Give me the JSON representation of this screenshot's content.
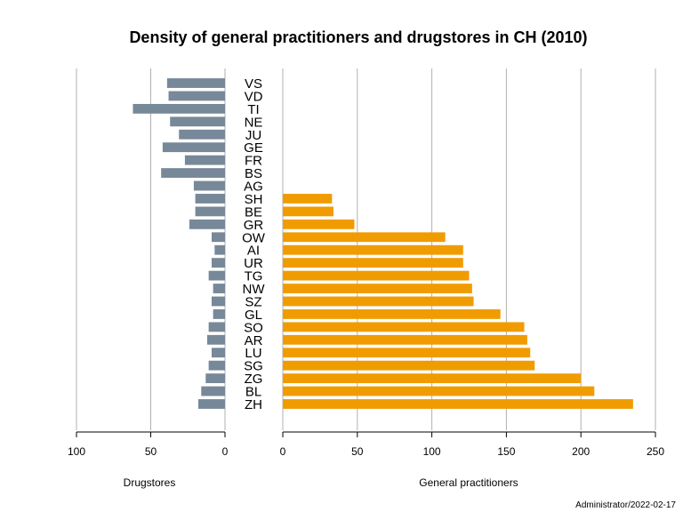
{
  "chart_data": {
    "type": "bar",
    "orientation": "horizontal",
    "layout": "back-to-back",
    "title": "Density of general practitioners and drugstores in CH (2010)",
    "credit": "Administrator/2022-02-17",
    "categories": [
      "VS",
      "VD",
      "TI",
      "NE",
      "JU",
      "GE",
      "FR",
      "BS",
      "AG",
      "SH",
      "BE",
      "GR",
      "OW",
      "AI",
      "UR",
      "TG",
      "NW",
      "SZ",
      "GL",
      "SO",
      "AR",
      "LU",
      "SG",
      "ZG",
      "BL",
      "ZH"
    ],
    "left_panel": {
      "xlabel": "Drugstores",
      "xlim": [
        100,
        0
      ],
      "ticks": [
        100,
        50,
        0
      ],
      "grid": true,
      "color": "#778899",
      "values": [
        39,
        38,
        62,
        37,
        31,
        42,
        27,
        43,
        21,
        20,
        20,
        24,
        9,
        7,
        9,
        11,
        8,
        9,
        8,
        11,
        12,
        9,
        11,
        13,
        16,
        18
      ]
    },
    "right_panel": {
      "xlabel": "General practitioners",
      "xlim": [
        0,
        250
      ],
      "ticks": [
        0,
        50,
        100,
        150,
        200,
        250
      ],
      "grid": true,
      "color": "#F09C00",
      "values": [
        0,
        0,
        0,
        0,
        0,
        0,
        0,
        0,
        0,
        33,
        34,
        48,
        109,
        121,
        121,
        125,
        127,
        128,
        146,
        162,
        164,
        166,
        169,
        200,
        209,
        235
      ]
    }
  }
}
